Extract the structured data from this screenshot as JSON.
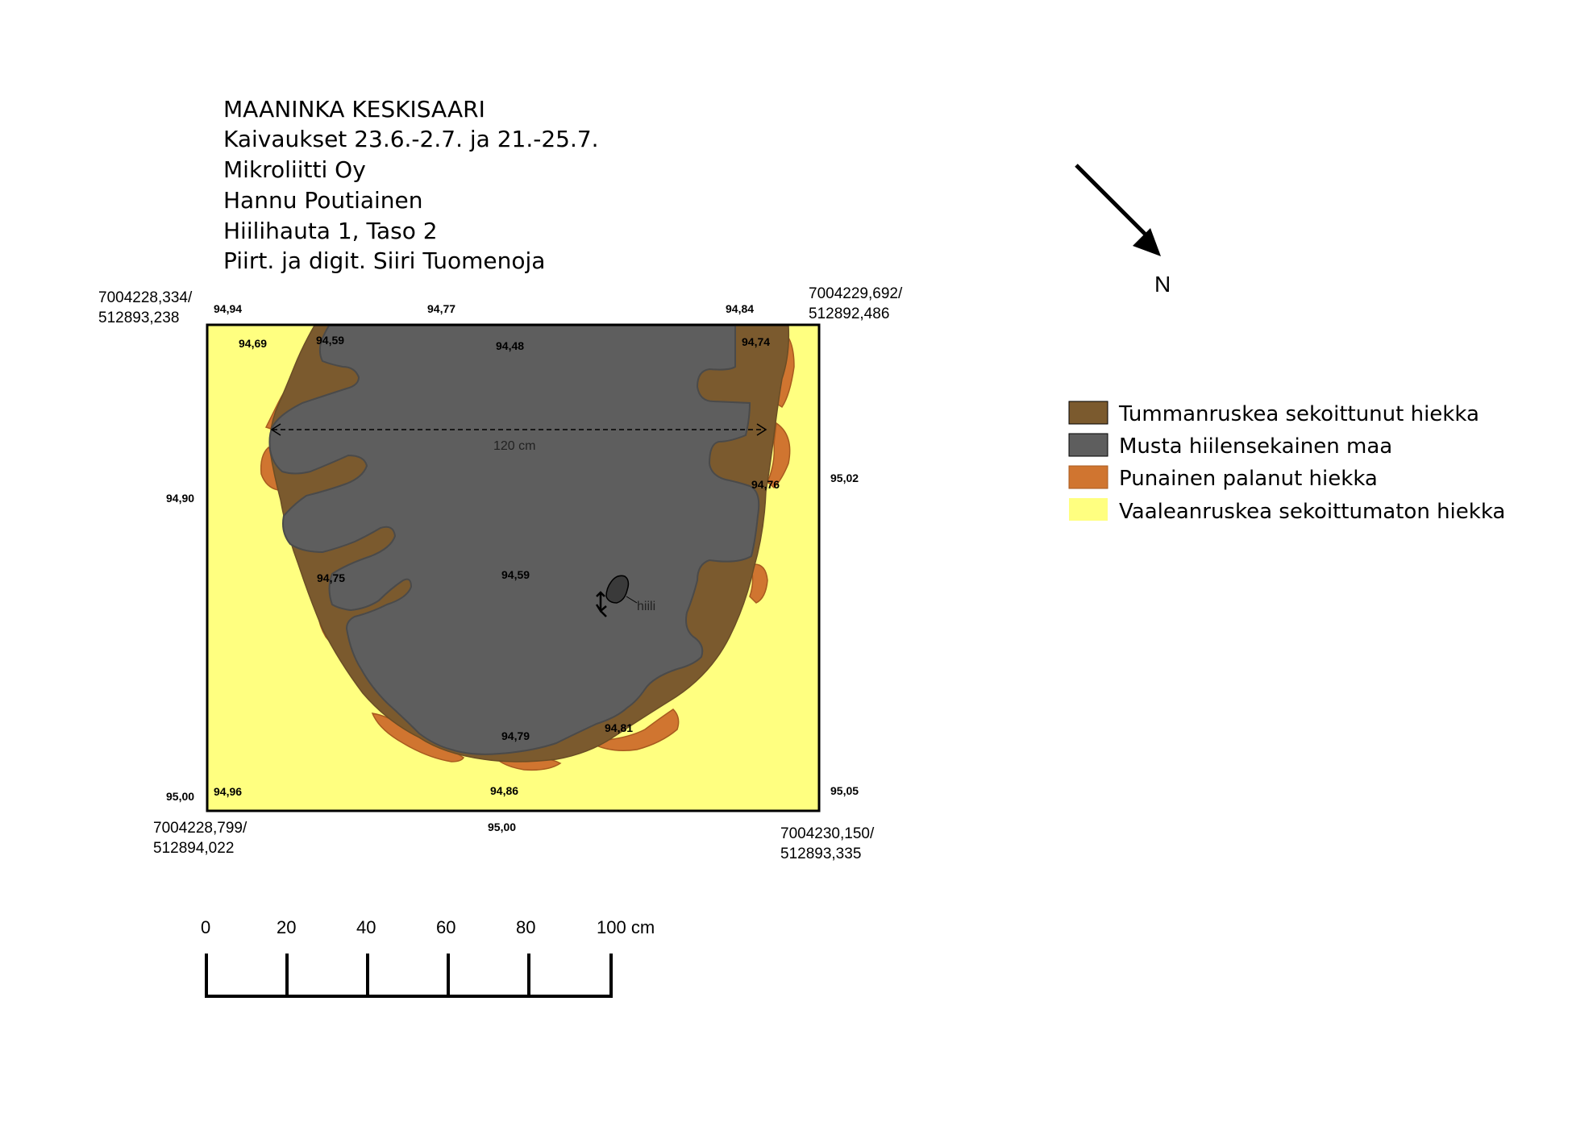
{
  "header": {
    "lines": [
      "MAANINKA KESKISAARI",
      "Kaivaukset 23.6.-2.7. ja 21.-25.7.",
      "Mikroliitti Oy",
      "Hannu Poutiainen",
      "Hiilihauta 1, Taso 2",
      "Piirt. ja digit. Siiri Tuomenoja"
    ]
  },
  "corners": {
    "top_left": [
      "7004228,334/",
      "512893,238"
    ],
    "top_right": [
      "7004229,692/",
      "512892,486"
    ],
    "bottom_left": [
      "7004228,799/",
      "512894,022"
    ],
    "bottom_right": [
      "7004230,150/",
      "512893,335"
    ]
  },
  "elevations": {
    "e1": "94,94",
    "e2": "94,77",
    "e3": "94,84",
    "e4": "94,69",
    "e5": "94,59",
    "e6": "94,48",
    "e7": "94,74",
    "e8": "94,90",
    "e9": "95,02",
    "e10": "94,76",
    "e11": "94,75",
    "e12": "94,59",
    "e13": "94,79",
    "e14": "94,81",
    "e15": "95,00",
    "e16": "94,96",
    "e17": "94,86",
    "e18": "95,05",
    "e19": "95,00"
  },
  "annotations": {
    "measure": "120 cm",
    "charcoal": "hiili"
  },
  "north": {
    "label": "N"
  },
  "legend": [
    {
      "label": "Tummanruskea sekoittunut hiekka",
      "color": "#7b5a2e"
    },
    {
      "label": "Musta hiilensekainen maa",
      "color": "#5e5e5e"
    },
    {
      "label": "Punainen palanut hiekka",
      "color": "#d07530"
    },
    {
      "label": "Vaaleanruskea sekoittumaton hiekka",
      "color": "#ffff80"
    }
  ],
  "scale_bar": {
    "ticks": [
      "0",
      "20",
      "40",
      "60",
      "80",
      "100 cm"
    ]
  },
  "colors": {
    "dark_brown": "#7b5a2e",
    "black_soil": "#5e5e5e",
    "burnt_sand": "#d07530",
    "light_sand": "#ffff80"
  }
}
